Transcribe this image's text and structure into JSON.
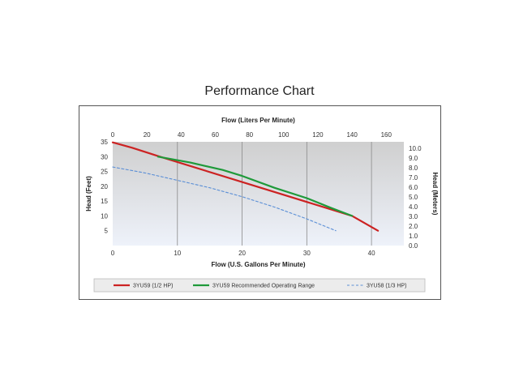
{
  "page": {
    "title": "Performance Chart"
  },
  "colors": {
    "red": "#cc2222",
    "green": "#1f9a3a",
    "blue": "#5b8fd6",
    "plot_bg_top": "#cfcfcf",
    "plot_bg_bottom": "#eef2fa"
  },
  "chart_data": {
    "type": "line",
    "title": "",
    "xlabel": "Flow (U.S. Gallons Per Minute)",
    "ylabel": "Head (Feet)",
    "x2label": "Flow (Liters Per Minute)",
    "y2label": "Head (Meters)",
    "xlim": [
      0,
      45
    ],
    "ylim": [
      0,
      35
    ],
    "x2lim": [
      0,
      170.3
    ],
    "y2lim": [
      0,
      10.67
    ],
    "x_ticks": [
      "0",
      "10",
      "20",
      "30",
      "40"
    ],
    "y_ticks": [
      "5",
      "10",
      "15",
      "20",
      "25",
      "30",
      "35"
    ],
    "x2_ticks": [
      "0",
      "20",
      "40",
      "60",
      "80",
      "100",
      "120",
      "140",
      "160"
    ],
    "y2_ticks": [
      "0.0",
      "1.0",
      "2.0",
      "3.0",
      "4.0",
      "5.0",
      "6.0",
      "7.0",
      "8.0",
      "9.0",
      "10.0"
    ],
    "grid": "vertical",
    "legend_position": "bottom",
    "series": [
      {
        "name": "3YU59 (1/2 HP)",
        "color": "#cc2222",
        "style": "solid",
        "points": [
          [
            0,
            34.8
          ],
          [
            3,
            33.0
          ],
          [
            7,
            30.2
          ],
          [
            37,
            10.0
          ],
          [
            41,
            5.0
          ]
        ]
      },
      {
        "name": "3YU59 Recommended Operating Range",
        "color": "#1f9a3a",
        "style": "solid",
        "points": [
          [
            7,
            30.0
          ],
          [
            12,
            28.0
          ],
          [
            17,
            25.5
          ],
          [
            20,
            23.5
          ],
          [
            25,
            19.5
          ],
          [
            30,
            16.0
          ],
          [
            34,
            12.5
          ],
          [
            37,
            10.0
          ]
        ]
      },
      {
        "name": "3YU58 (1/3 HP)",
        "color": "#5b8fd6",
        "style": "dashed",
        "points": [
          [
            0,
            26.5
          ],
          [
            5,
            24.5
          ],
          [
            10,
            22.0
          ],
          [
            15,
            19.5
          ],
          [
            20,
            16.5
          ],
          [
            25,
            13.0
          ],
          [
            30,
            9.0
          ],
          [
            34.5,
            5.0
          ]
        ]
      }
    ]
  }
}
